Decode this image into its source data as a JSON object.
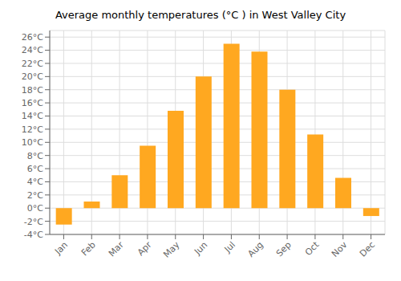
{
  "chart_data": {
    "type": "bar",
    "title": "Average monthly temperatures (°C ) in West Valley City",
    "categories": [
      "Jan",
      "Feb",
      "Mar",
      "Apr",
      "May",
      "Jun",
      "Jul",
      "Aug",
      "Sep",
      "Oct",
      "Nov",
      "Dec"
    ],
    "values": [
      -2.5,
      1.0,
      5.0,
      9.5,
      14.8,
      20.0,
      25.0,
      23.8,
      18.0,
      11.2,
      4.6,
      -1.2
    ],
    "color": "#FFA820",
    "ylim": [
      -4,
      27
    ],
    "yticks": [
      {
        "value": -4,
        "label": "-4°C"
      },
      {
        "value": -2,
        "label": "-2°C"
      },
      {
        "value": 0,
        "label": "0°C"
      },
      {
        "value": 2,
        "label": "2°C"
      },
      {
        "value": 4,
        "label": "4°C"
      },
      {
        "value": 6,
        "label": "6°C"
      },
      {
        "value": 8,
        "label": "8°C"
      },
      {
        "value": 10,
        "label": "10°C"
      },
      {
        "value": 12,
        "label": "12°C"
      },
      {
        "value": 14,
        "label": "14°C"
      },
      {
        "value": 16,
        "label": "16°C"
      },
      {
        "value": 18,
        "label": "18°C"
      },
      {
        "value": 20,
        "label": "20°C"
      },
      {
        "value": 22,
        "label": "22°C"
      },
      {
        "value": 24,
        "label": "24°C"
      },
      {
        "value": 26,
        "label": "26°C"
      }
    ],
    "grid": true
  }
}
